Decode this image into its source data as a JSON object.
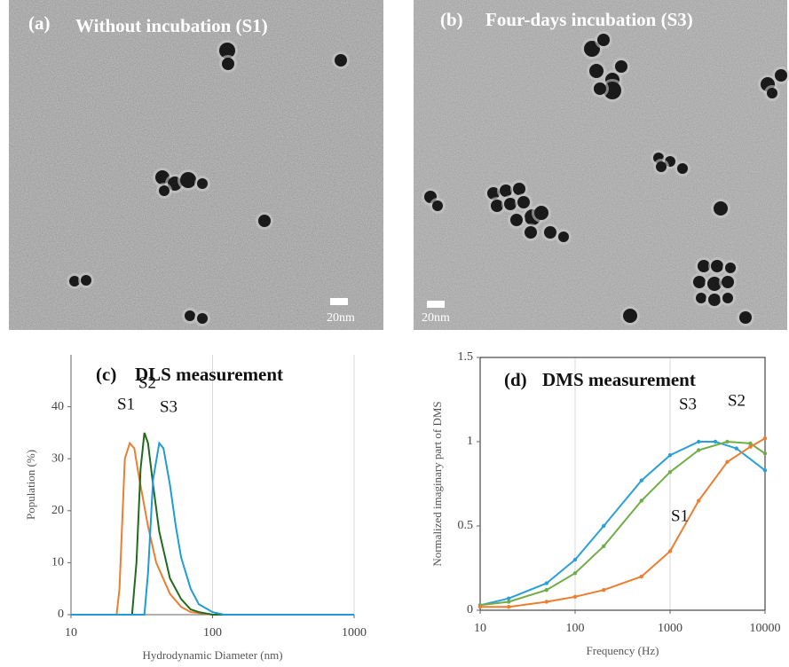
{
  "panels": [
    {
      "label": "(a)",
      "title": "Without incubation (S1)",
      "scale_bar": "20nm"
    },
    {
      "label": "(b)",
      "title": "Four-days incubation (S3)",
      "scale_bar": "20nm"
    }
  ],
  "chart_data": [
    {
      "type": "line",
      "panel_label": "(c)",
      "title": "DLS measurement",
      "x_label": "Hydrodynamic Diameter (nm)",
      "y_label": "Population (%)",
      "log_x": true,
      "xlim": [
        10,
        1000
      ],
      "xticks": [
        10,
        100,
        1000
      ],
      "ylim": [
        0,
        50
      ],
      "yticks": [
        0,
        10,
        20,
        30,
        40
      ],
      "grid": true,
      "border": false,
      "markers": false,
      "series": [
        {
          "name": "S1",
          "color": "#ed7d31",
          "x": [
            10,
            21,
            22,
            24,
            26,
            28,
            30,
            35,
            40,
            50,
            60,
            70,
            100,
            1000
          ],
          "values": [
            0,
            0,
            5,
            30,
            33,
            32,
            27,
            17,
            10,
            4,
            1.5,
            0.5,
            0,
            0
          ]
        },
        {
          "name": "S2",
          "color": "#1e6b1e",
          "x": [
            10,
            27,
            29,
            31,
            33,
            35,
            38,
            42,
            50,
            60,
            70,
            80,
            100,
            1000
          ],
          "values": [
            0,
            0,
            10,
            28,
            35,
            33,
            25,
            16,
            7,
            3,
            1,
            0.5,
            0,
            0
          ]
        },
        {
          "name": "S3",
          "color": "#1f9bd7",
          "x": [
            10,
            33,
            35,
            38,
            42,
            45,
            50,
            55,
            60,
            70,
            80,
            100,
            120,
            1000
          ],
          "values": [
            0,
            0,
            8,
            26,
            33,
            32,
            25,
            17,
            11,
            5,
            2,
            0.5,
            0,
            0
          ]
        }
      ]
    },
    {
      "type": "line",
      "panel_label": "(d)",
      "title": "DMS measurement",
      "x_label": "Frequency (Hz)",
      "y_label": "Normalized imaginary part of DMS",
      "log_x": true,
      "xlim": [
        10,
        10000
      ],
      "xticks": [
        10,
        100,
        1000,
        10000
      ],
      "ylim": [
        0,
        1.5
      ],
      "yticks": [
        0,
        0.5,
        1,
        1.5
      ],
      "grid": true,
      "border": true,
      "markers": true,
      "series": [
        {
          "name": "S3",
          "color": "#2a9fd8",
          "x": [
            10,
            20,
            50,
            100,
            200,
            500,
            1000,
            2000,
            3000,
            5000,
            10000
          ],
          "values": [
            0.03,
            0.07,
            0.16,
            0.3,
            0.5,
            0.77,
            0.92,
            1.0,
            1.0,
            0.96,
            0.83
          ]
        },
        {
          "name": "S2",
          "color": "#70ad47",
          "x": [
            10,
            20,
            50,
            100,
            200,
            500,
            1000,
            2000,
            4000,
            7000,
            10000
          ],
          "values": [
            0.03,
            0.05,
            0.12,
            0.22,
            0.38,
            0.65,
            0.82,
            0.95,
            1.0,
            0.99,
            0.93
          ]
        },
        {
          "name": "S1",
          "color": "#ed7d31",
          "x": [
            10,
            20,
            50,
            100,
            200,
            500,
            1000,
            2000,
            4000,
            7000,
            10000
          ],
          "values": [
            0.02,
            0.02,
            0.05,
            0.08,
            0.12,
            0.2,
            0.35,
            0.65,
            0.88,
            0.97,
            1.02
          ]
        }
      ]
    }
  ]
}
